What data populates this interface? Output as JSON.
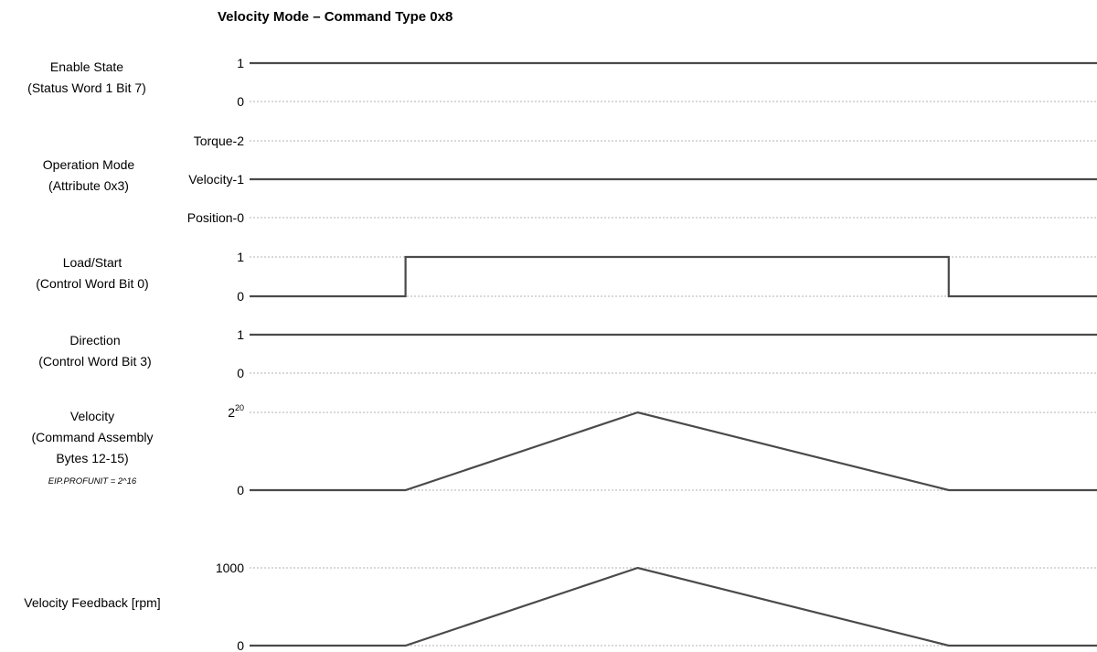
{
  "title": "Velocity Mode – Command Type 0x8",
  "signals": [
    {
      "label_lines": [
        "Enable State",
        "(Status Word 1 Bit 7)"
      ],
      "levels": [
        "1",
        "0"
      ],
      "trace": [
        [
          0,
          "1"
        ],
        [
          1,
          "1"
        ]
      ]
    },
    {
      "label_lines": [
        "Operation Mode",
        "(Attribute 0x3)"
      ],
      "levels": [
        "Torque-2",
        "Velocity-1",
        "Position-0"
      ],
      "trace": [
        [
          0,
          "Velocity-1"
        ],
        [
          1,
          "Velocity-1"
        ]
      ]
    },
    {
      "label_lines": [
        "Load/Start",
        "(Control Word Bit 0)"
      ],
      "levels": [
        "1",
        "0"
      ],
      "trace": [
        [
          0,
          "0"
        ],
        [
          0.184,
          "0"
        ],
        [
          0.184,
          "1"
        ],
        [
          0.825,
          "1"
        ],
        [
          0.825,
          "0"
        ],
        [
          1,
          "0"
        ]
      ]
    },
    {
      "label_lines": [
        "Direction",
        "(Control Word Bit 3)"
      ],
      "levels": [
        "1",
        "0"
      ],
      "trace": [
        [
          0,
          "1"
        ],
        [
          1,
          "1"
        ]
      ]
    },
    {
      "label_lines": [
        "Velocity",
        "(Command Assembly",
        "Bytes 12-15)"
      ],
      "note": "EIP.PROFUNIT = 2^16",
      "levels": [
        "2^20",
        "0"
      ],
      "level_base": "2",
      "level_exp": "20",
      "trace": [
        [
          0,
          "0"
        ],
        [
          0.184,
          "0"
        ],
        [
          0.458,
          "2^20"
        ],
        [
          0.825,
          "0"
        ],
        [
          1,
          "0"
        ]
      ]
    },
    {
      "label_lines": [
        "Velocity Feedback [rpm]"
      ],
      "levels": [
        "1000",
        "0"
      ],
      "trace": [
        [
          0,
          "0"
        ],
        [
          0.184,
          "0"
        ],
        [
          0.458,
          "1000"
        ],
        [
          0.825,
          "0"
        ],
        [
          1,
          "0"
        ]
      ]
    }
  ]
}
